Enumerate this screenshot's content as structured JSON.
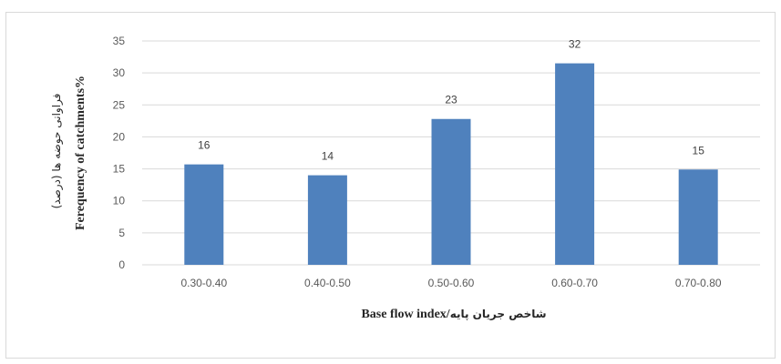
{
  "chart_data": {
    "type": "bar",
    "categories": [
      "0.30-0.40",
      "0.40-0.50",
      "0.50-0.60",
      "0.60-0.70",
      "0.70-0.80"
    ],
    "values": [
      15.7,
      14,
      22.8,
      31.5,
      14.9
    ],
    "data_labels": [
      "16",
      "14",
      "23",
      "32",
      "15"
    ],
    "xlabel_en": "Base flow index/",
    "xlabel_fa": "شاخص جریان پایه",
    "ylabel_en": "Ferequency of catchments%",
    "ylabel_fa": "فراوانی حوضه ها (درصد)",
    "ylim": [
      0,
      35
    ],
    "yticks": [
      0,
      5,
      10,
      15,
      20,
      25,
      30,
      35
    ],
    "grid": "horizontal",
    "legend": "none",
    "bar_color": "#4f81bd",
    "grid_color": "#d9d9d9"
  }
}
